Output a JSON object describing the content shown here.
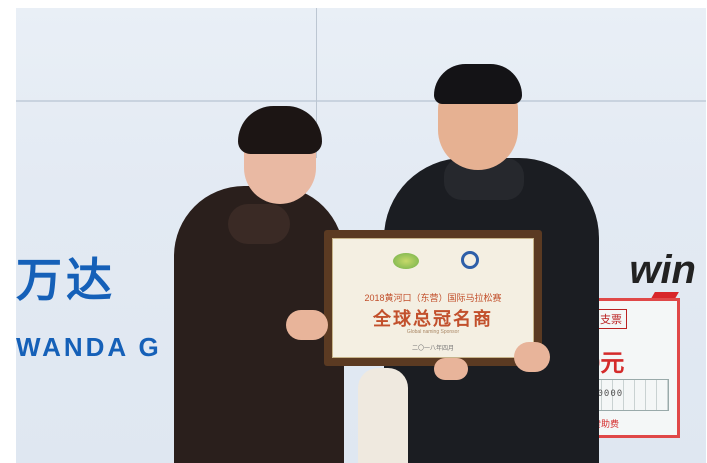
{
  "banner": {
    "brand_cn": "万达",
    "brand_en": "WANDA G",
    "sponsor_logo": "win"
  },
  "plaque": {
    "subtitle": "2018黄河口（东营）国际马拉松赛",
    "main_text": "全球总冠名商",
    "english_text": "Global naming Sponsor",
    "date_text": "二〇一八年四月"
  },
  "cheque": {
    "title": "支票",
    "amount": "0000元",
    "digits": "¥300000000",
    "note": "松赛总冠名赞助费"
  },
  "colors": {
    "brand_blue": "#1560b8",
    "plaque_frame": "#5b3a22",
    "cheque_red": "#d42b2b"
  }
}
